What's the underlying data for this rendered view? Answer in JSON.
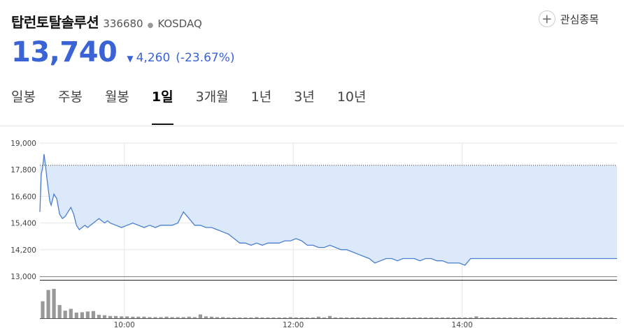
{
  "header": {
    "stock_name": "탑런토탈솔루션",
    "stock_code": "336680",
    "market": "KOSDAQ",
    "watch_label": "관심종목"
  },
  "quote": {
    "price": "13,740",
    "change": "4,260",
    "change_pct": "(-23.67%)",
    "direction": "down",
    "color": "#3a63d6"
  },
  "tabs": [
    {
      "label": "일봉",
      "active": false
    },
    {
      "label": "주봉",
      "active": false
    },
    {
      "label": "월봉",
      "active": false
    },
    {
      "label": "1일",
      "active": true
    },
    {
      "label": "3개월",
      "active": false
    },
    {
      "label": "1년",
      "active": false
    },
    {
      "label": "3년",
      "active": false
    },
    {
      "label": "10년",
      "active": false
    }
  ],
  "chart_data": {
    "type": "area",
    "ylim": [
      13000,
      19000
    ],
    "y_ticks": [
      "19,000",
      "17,800",
      "16,600",
      "15,400",
      "14,200",
      "13,000"
    ],
    "y_tick_values": [
      19000,
      17800,
      16600,
      15400,
      14200,
      13000
    ],
    "x_ticks": [
      "10:00",
      "12:00",
      "14:00"
    ],
    "x_tick_minutes": [
      600,
      720,
      840
    ],
    "xlim_minutes": [
      540,
      950
    ],
    "reference_price": 18000,
    "grid": true,
    "colors": {
      "line": "#4a7fd0",
      "fill": "#dce9fb",
      "volume": "#999999",
      "reference": "#333333"
    },
    "price_series": {
      "x_minutes": [
        540,
        541,
        542,
        543,
        544,
        545,
        546,
        547,
        548,
        550,
        552,
        554,
        556,
        558,
        560,
        562,
        564,
        566,
        568,
        570,
        572,
        574,
        576,
        578,
        580,
        582,
        584,
        586,
        588,
        590,
        594,
        598,
        602,
        606,
        610,
        614,
        618,
        622,
        626,
        630,
        634,
        638,
        642,
        646,
        650,
        654,
        658,
        662,
        666,
        670,
        674,
        678,
        682,
        686,
        690,
        694,
        698,
        702,
        706,
        710,
        714,
        718,
        722,
        726,
        730,
        734,
        738,
        742,
        746,
        750,
        754,
        758,
        762,
        766,
        770,
        774,
        778,
        782,
        786,
        790,
        794,
        798,
        802,
        806,
        810,
        814,
        818,
        822,
        826,
        830,
        834,
        838,
        842,
        846,
        850,
        854,
        858,
        862,
        866,
        870,
        874,
        878,
        882,
        886,
        890,
        894,
        898,
        902,
        906,
        910,
        914,
        918,
        922,
        926,
        930,
        934,
        938,
        942,
        946,
        950
      ],
      "y_values": [
        15900,
        17600,
        17900,
        18500,
        18000,
        17400,
        16900,
        16400,
        16200,
        16700,
        16500,
        15800,
        15600,
        15700,
        15900,
        16100,
        15800,
        15300,
        15100,
        15200,
        15300,
        15200,
        15300,
        15400,
        15500,
        15600,
        15500,
        15400,
        15500,
        15400,
        15300,
        15200,
        15300,
        15400,
        15300,
        15200,
        15300,
        15200,
        15300,
        15300,
        15300,
        15400,
        15900,
        15600,
        15300,
        15300,
        15200,
        15200,
        15100,
        15000,
        14900,
        14700,
        14500,
        14500,
        14400,
        14500,
        14400,
        14500,
        14500,
        14500,
        14600,
        14600,
        14700,
        14600,
        14400,
        14400,
        14300,
        14300,
        14400,
        14300,
        14200,
        14200,
        14100,
        14000,
        13900,
        13800,
        13600,
        13700,
        13800,
        13800,
        13700,
        13800,
        13800,
        13800,
        13700,
        13800,
        13800,
        13700,
        13700,
        13600,
        13600,
        13600,
        13500,
        13800,
        13800,
        13800,
        13800,
        13800,
        13800,
        13800,
        13800,
        13800,
        13800,
        13800,
        13800,
        13800,
        13800,
        13800,
        13800,
        13800,
        13800,
        13800,
        13800,
        13800,
        13800,
        13800,
        13800,
        13800,
        13800,
        13800
      ]
    },
    "volume_series": {
      "x_minutes": [
        542,
        546,
        550,
        554,
        558,
        562,
        566,
        570,
        574,
        578,
        582,
        586,
        590,
        594,
        598,
        602,
        606,
        610,
        614,
        618,
        622,
        626,
        630,
        634,
        638,
        642,
        646,
        650,
        654,
        658,
        662,
        666,
        670,
        674,
        678,
        682,
        686,
        690,
        694,
        698,
        702,
        706,
        710,
        714,
        718,
        722,
        726,
        730,
        734,
        738,
        742,
        746,
        750,
        754,
        758,
        762,
        766,
        770,
        774,
        778,
        782,
        786,
        790,
        794,
        798,
        802,
        806,
        810,
        814,
        818,
        822,
        826,
        830,
        834,
        838,
        842,
        846,
        850,
        854,
        858,
        862,
        866,
        870,
        874,
        878,
        882,
        886,
        890,
        894,
        898,
        902,
        906,
        910,
        914,
        918,
        922,
        926,
        930,
        934,
        938,
        942,
        946
      ],
      "values": [
        0.45,
        0.75,
        0.78,
        0.35,
        0.2,
        0.25,
        0.15,
        0.16,
        0.18,
        0.19,
        0.09,
        0.08,
        0.06,
        0.06,
        0.05,
        0.05,
        0.04,
        0.04,
        0.04,
        0.03,
        0.03,
        0.03,
        0.04,
        0.03,
        0.03,
        0.03,
        0.04,
        0.03,
        0.1,
        0.05,
        0.04,
        0.03,
        0.03,
        0.02,
        0.02,
        0.02,
        0.02,
        0.02,
        0.03,
        0.02,
        0.02,
        0.02,
        0.02,
        0.02,
        0.03,
        0.02,
        0.02,
        0.02,
        0.02,
        0.04,
        0.02,
        0.06,
        0.02,
        0.02,
        0.02,
        0.02,
        0.02,
        0.02,
        0.02,
        0.02,
        0.02,
        0.02,
        0.02,
        0.02,
        0.02,
        0.02,
        0.02,
        0.02,
        0.02,
        0.02,
        0.02,
        0.02,
        0.02,
        0.02,
        0.02,
        0.02,
        0.02,
        0.05,
        0.02,
        0.02,
        0.02,
        0.02,
        0.02,
        0.02,
        0.02,
        0.02,
        0.02,
        0.02,
        0.02,
        0.02,
        0.02,
        0.02,
        0.02,
        0.02,
        0.02,
        0.02,
        0.02,
        0.02,
        0.02,
        0.02,
        0.02,
        0.02
      ]
    }
  }
}
